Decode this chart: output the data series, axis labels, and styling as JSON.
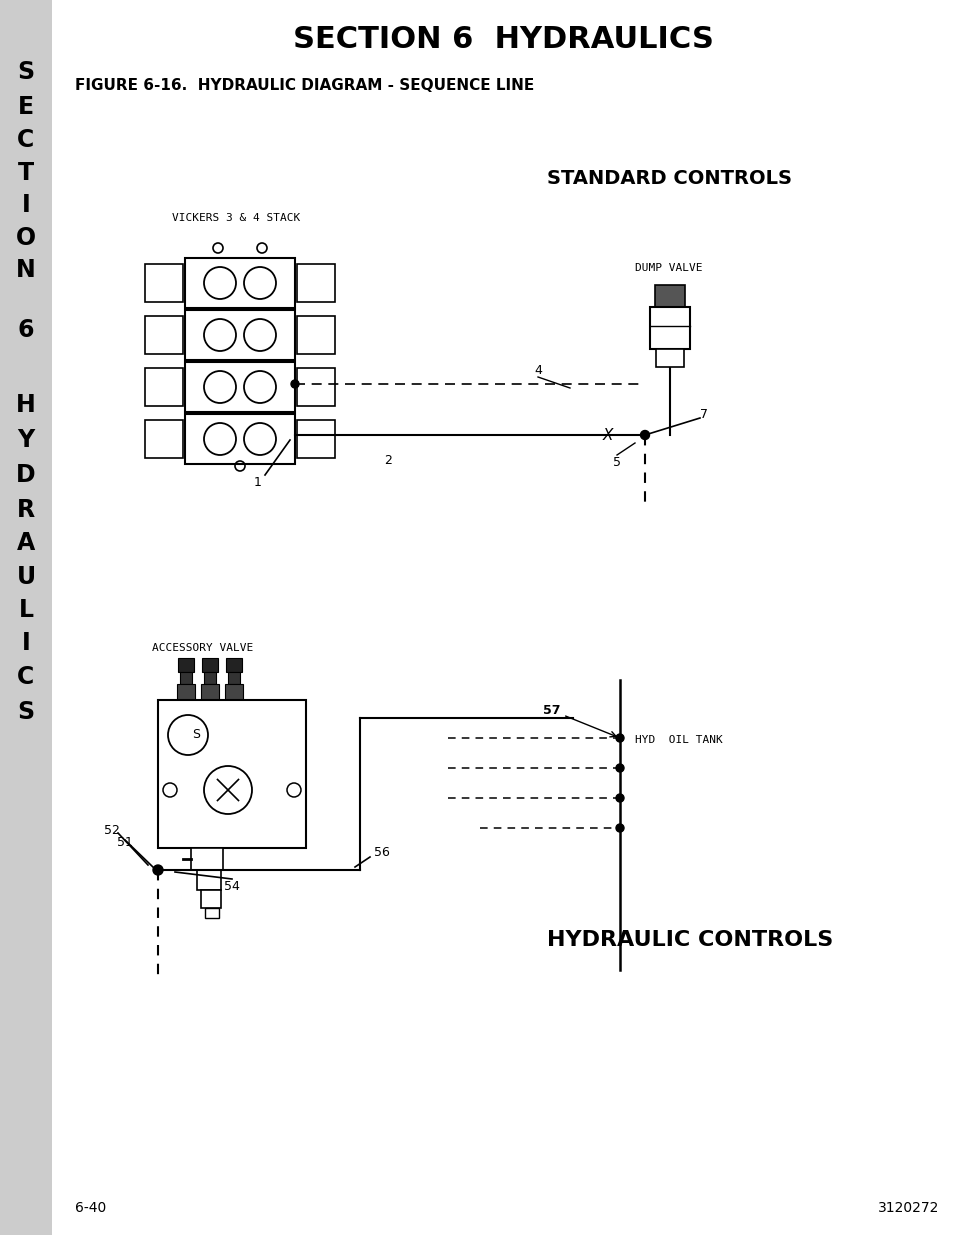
{
  "title": "SECTION 6  HYDRAULICS",
  "figure_label": "FIGURE 6-16.  HYDRAULIC DIAGRAM - SEQUENCE LINE",
  "bg_color": "#ffffff",
  "sidebar_color": "#cccccc",
  "sidebar_letters": [
    "S",
    "E",
    "C",
    "T",
    "I",
    "O",
    "N",
    "6",
    "H",
    "Y",
    "D",
    "R",
    "A",
    "U",
    "L",
    "I",
    "C",
    "S"
  ],
  "sidebar_letter_y": [
    72,
    107,
    140,
    173,
    205,
    238,
    270,
    330,
    405,
    440,
    475,
    510,
    543,
    577,
    610,
    643,
    677,
    712
  ],
  "standard_controls_label": "STANDARD CONTROLS",
  "vickers_label": "VICKERS 3 & 4 STACK",
  "dump_valve_label": "DUMP VALVE",
  "hydraulic_controls_label": "HYDRAULIC CONTROLS",
  "accessory_valve_label": "ACCESSORY VALVE",
  "hyd_oil_tank_label": "HYD  OIL TANK",
  "page_left": "6-40",
  "page_right": "3120272"
}
